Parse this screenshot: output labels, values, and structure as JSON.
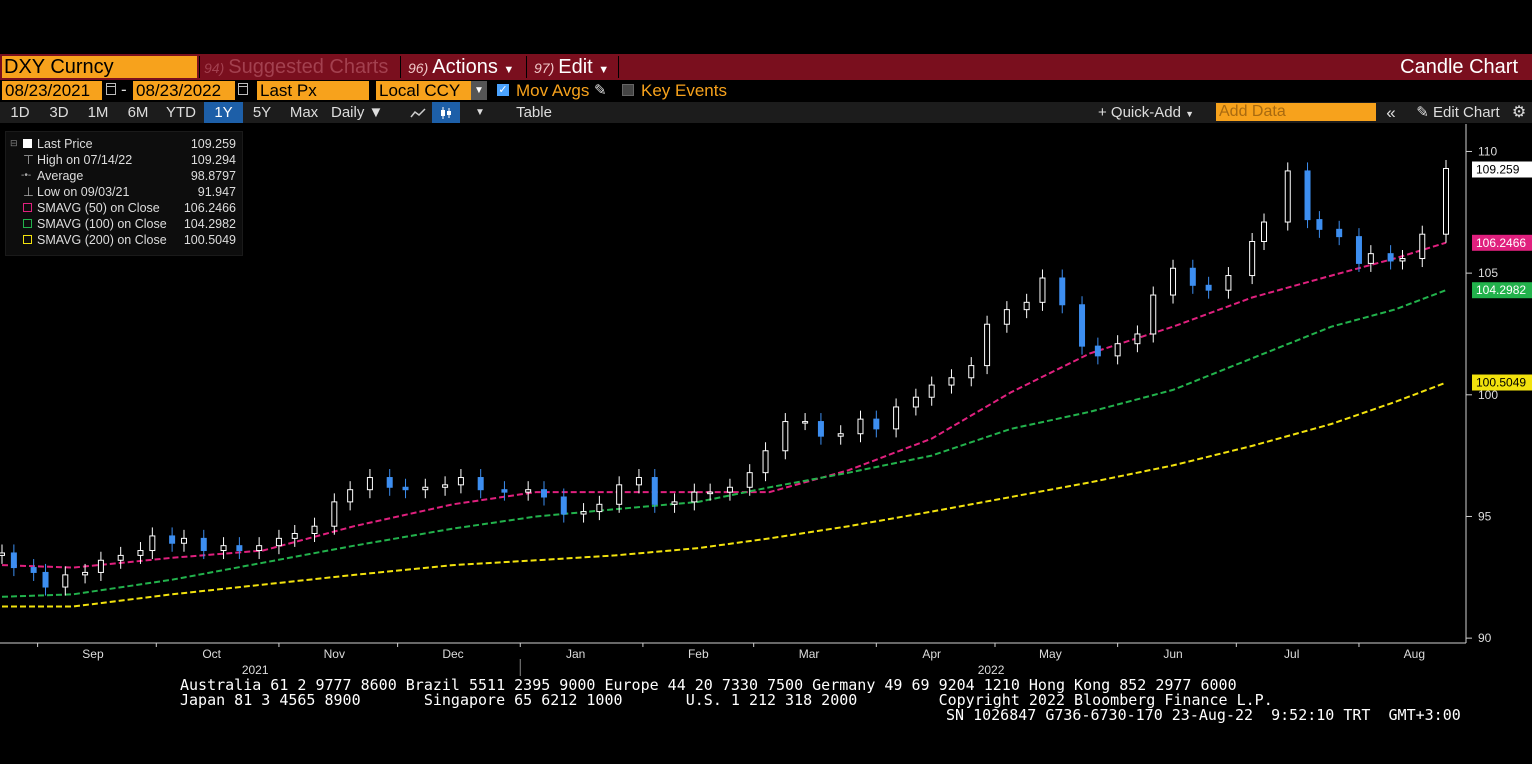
{
  "header": {
    "ticker": "DXY Curncy",
    "suggested_num": "94)",
    "suggested_label": "Suggested Charts",
    "actions_num": "96)",
    "actions_label": "Actions",
    "edit_num": "97)",
    "edit_label": "Edit",
    "chart_type": "Candle Chart"
  },
  "toolbar": {
    "start_date": "08/23/2021",
    "end_date": "08/23/2022",
    "separator": "-",
    "field": "Last Px",
    "currency": "Local CCY",
    "mov_avgs_label": "Mov Avgs",
    "key_events_label": "Key Events",
    "ranges": [
      "1D",
      "3D",
      "1M",
      "6M",
      "YTD",
      "1Y",
      "5Y",
      "Max"
    ],
    "selected_range": "1Y",
    "period": "Daily",
    "table_label": "Table",
    "quick_add_label": "Quick-Add",
    "add_data_placeholder": "Add Data",
    "edit_chart_label": "Edit Chart"
  },
  "legend": {
    "rows": [
      {
        "label": "Last Price",
        "value": "109.259"
      },
      {
        "label": "High on 07/14/22",
        "value": "109.294"
      },
      {
        "label": "Average",
        "value": "98.8797"
      },
      {
        "label": "Low on 09/03/21",
        "value": "91.947"
      },
      {
        "label": "SMAVG (50)  on Close",
        "value": "106.2466"
      },
      {
        "label": "SMAVG (100)  on Close",
        "value": "104.2982"
      },
      {
        "label": "SMAVG (200)  on Close",
        "value": "100.5049"
      }
    ]
  },
  "colors": {
    "sma50": "#e0207e",
    "sma100": "#22b24c",
    "sma200": "#f2e20d",
    "candle_up": "#ffffff",
    "candle_down": "#3d8ef0",
    "header_bg": "#7a0f1e",
    "accent": "#f7a21c"
  },
  "chart_data": {
    "type": "line",
    "ylim": [
      89.8,
      110.8
    ],
    "yticks": [
      90,
      95,
      100,
      105,
      110
    ],
    "ytick_labels": [
      "90",
      "95",
      "100",
      "105",
      "110"
    ],
    "x_start": "2021-08-23",
    "x_end": "2022-08-23",
    "month_labels": [
      "Sep",
      "Oct",
      "Nov",
      "Dec",
      "Jan",
      "Feb",
      "Mar",
      "Apr",
      "May",
      "Jun",
      "Jul",
      "Aug"
    ],
    "month_dates": [
      "2021-09-15",
      "2021-10-15",
      "2021-11-15",
      "2021-12-15",
      "2022-01-15",
      "2022-02-15",
      "2022-03-15",
      "2022-04-15",
      "2022-05-15",
      "2022-06-15",
      "2022-07-15",
      "2022-08-15"
    ],
    "year_labels": [
      "2021",
      "2022"
    ],
    "year_label_dates": [
      "2021-10-26",
      "2022-04-30"
    ],
    "year_divider_date": "2022-01-01",
    "price_series": {
      "name": "Last Price",
      "dates": [
        "2021-08-23",
        "2021-08-26",
        "2021-08-31",
        "2021-09-03",
        "2021-09-08",
        "2021-09-13",
        "2021-09-17",
        "2021-09-22",
        "2021-09-27",
        "2021-09-30",
        "2021-10-05",
        "2021-10-08",
        "2021-10-13",
        "2021-10-18",
        "2021-10-22",
        "2021-10-27",
        "2021-11-01",
        "2021-11-05",
        "2021-11-10",
        "2021-11-15",
        "2021-11-19",
        "2021-11-24",
        "2021-11-29",
        "2021-12-03",
        "2021-12-08",
        "2021-12-13",
        "2021-12-17",
        "2021-12-22",
        "2021-12-28",
        "2022-01-03",
        "2022-01-07",
        "2022-01-12",
        "2022-01-17",
        "2022-01-21",
        "2022-01-26",
        "2022-01-31",
        "2022-02-04",
        "2022-02-09",
        "2022-02-14",
        "2022-02-18",
        "2022-02-23",
        "2022-02-28",
        "2022-03-04",
        "2022-03-09",
        "2022-03-14",
        "2022-03-18",
        "2022-03-23",
        "2022-03-28",
        "2022-04-01",
        "2022-04-06",
        "2022-04-11",
        "2022-04-15",
        "2022-04-20",
        "2022-04-25",
        "2022-04-29",
        "2022-05-04",
        "2022-05-09",
        "2022-05-13",
        "2022-05-18",
        "2022-05-23",
        "2022-05-27",
        "2022-06-01",
        "2022-06-06",
        "2022-06-10",
        "2022-06-15",
        "2022-06-20",
        "2022-06-24",
        "2022-06-29",
        "2022-07-05",
        "2022-07-08",
        "2022-07-14",
        "2022-07-19",
        "2022-07-22",
        "2022-07-27",
        "2022-08-01",
        "2022-08-04",
        "2022-08-09",
        "2022-08-12",
        "2022-08-17",
        "2022-08-23"
      ],
      "values": [
        93.5,
        92.9,
        92.7,
        92.1,
        92.6,
        92.7,
        93.2,
        93.4,
        93.6,
        94.2,
        93.9,
        94.1,
        93.6,
        93.8,
        93.6,
        93.8,
        94.1,
        94.3,
        94.6,
        95.6,
        96.1,
        96.6,
        96.2,
        96.1,
        96.2,
        96.3,
        96.6,
        96.1,
        96.0,
        96.1,
        95.8,
        95.1,
        95.2,
        95.5,
        96.3,
        96.6,
        95.5,
        95.6,
        96.0,
        96.0,
        96.2,
        96.8,
        97.7,
        98.9,
        98.9,
        98.3,
        98.4,
        99.0,
        98.6,
        99.5,
        99.9,
        100.4,
        100.7,
        101.2,
        102.9,
        103.5,
        103.8,
        104.8,
        103.7,
        102.0,
        101.6,
        102.1,
        102.5,
        104.1,
        105.2,
        104.5,
        104.3,
        104.9,
        106.3,
        107.1,
        109.2,
        107.2,
        106.8,
        106.5,
        105.4,
        105.8,
        105.5,
        105.6,
        106.6,
        109.3
      ]
    },
    "series": [
      {
        "name": "SMAVG (50)  on Close",
        "color": "#e0207e",
        "dates": [
          "2021-08-23",
          "2021-09-10",
          "2021-10-05",
          "2021-10-28",
          "2021-11-20",
          "2021-12-15",
          "2022-01-05",
          "2022-01-25",
          "2022-02-15",
          "2022-03-05",
          "2022-03-25",
          "2022-04-15",
          "2022-05-05",
          "2022-05-25",
          "2022-06-15",
          "2022-07-05",
          "2022-07-25",
          "2022-08-10",
          "2022-08-23"
        ],
        "values": [
          93.0,
          92.9,
          93.3,
          93.6,
          94.6,
          95.5,
          96.0,
          96.0,
          96.0,
          96.0,
          96.9,
          98.2,
          100.1,
          101.7,
          102.8,
          104.0,
          104.9,
          105.6,
          106.25
        ]
      },
      {
        "name": "SMAVG (100)  on Close",
        "color": "#22b24c",
        "dates": [
          "2021-08-23",
          "2021-09-10",
          "2021-10-05",
          "2021-10-28",
          "2021-11-20",
          "2021-12-15",
          "2022-01-05",
          "2022-01-25",
          "2022-02-15",
          "2022-03-05",
          "2022-03-25",
          "2022-04-15",
          "2022-05-05",
          "2022-05-25",
          "2022-06-15",
          "2022-07-05",
          "2022-07-25",
          "2022-08-10",
          "2022-08-23"
        ],
        "values": [
          91.7,
          91.8,
          92.4,
          93.1,
          93.8,
          94.5,
          95.0,
          95.3,
          95.6,
          96.2,
          96.8,
          97.5,
          98.6,
          99.3,
          100.2,
          101.5,
          102.8,
          103.5,
          104.3
        ]
      },
      {
        "name": "SMAVG (200)  on Close",
        "color": "#f2e20d",
        "dates": [
          "2021-08-23",
          "2021-09-10",
          "2021-10-05",
          "2021-10-28",
          "2021-11-20",
          "2021-12-15",
          "2022-01-05",
          "2022-01-25",
          "2022-02-15",
          "2022-03-05",
          "2022-03-25",
          "2022-04-15",
          "2022-05-05",
          "2022-05-25",
          "2022-06-15",
          "2022-07-05",
          "2022-07-25",
          "2022-08-10",
          "2022-08-23"
        ],
        "values": [
          91.3,
          91.3,
          91.8,
          92.2,
          92.6,
          93.0,
          93.2,
          93.4,
          93.7,
          94.1,
          94.6,
          95.2,
          95.8,
          96.4,
          97.1,
          97.9,
          98.8,
          99.7,
          100.5
        ]
      }
    ],
    "last_labels": [
      {
        "text": "109.259",
        "value": 109.259,
        "bg": "#ffffff",
        "fg": "#000000"
      },
      {
        "text": "106.2466",
        "value": 106.2466,
        "bg": "#e0207e",
        "fg": "#ffffff"
      },
      {
        "text": "104.2982",
        "value": 104.2982,
        "bg": "#22b24c",
        "fg": "#ffffff"
      },
      {
        "text": "100.5049",
        "value": 100.5049,
        "bg": "#f2e20d",
        "fg": "#000000"
      }
    ]
  },
  "footer": {
    "line1": "Australia 61 2 9777 8600 Brazil 5511 2395 9000 Europe 44 20 7330 7500 Germany 49 69 9204 1210 Hong Kong 852 2977 6000",
    "line2": "Japan 81 3 4565 8900       Singapore 65 6212 1000       U.S. 1 212 318 2000         Copyright 2022 Bloomberg Finance L.P.",
    "line3": "SN 1026847 G736-6730-170 23-Aug-22  9:52:10 TRT  GMT+3:00"
  }
}
